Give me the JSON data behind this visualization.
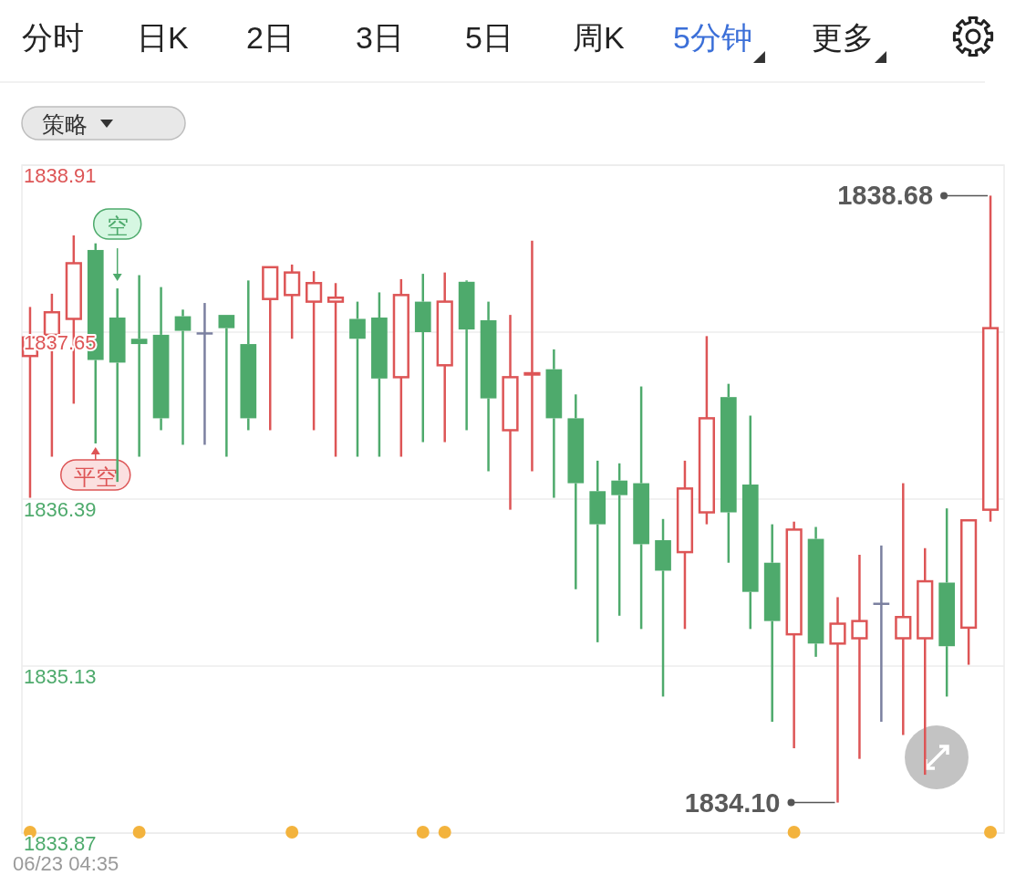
{
  "chart_data": {
    "type": "candlestick",
    "categories": [
      null,
      null,
      null,
      null,
      null,
      null,
      null,
      null,
      null,
      null,
      null,
      null,
      null,
      null,
      null,
      null,
      null,
      null,
      null,
      null,
      null,
      null,
      null,
      null,
      null,
      null,
      null,
      null,
      null,
      null,
      null,
      null,
      null,
      null,
      null,
      null,
      null,
      null,
      null,
      null,
      null,
      null,
      null,
      null,
      null
    ],
    "ohlc": [
      [
        1837.47,
        1837.84,
        1836.4,
        1837.61
      ],
      [
        1837.63,
        1837.94,
        1836.71,
        1837.8
      ],
      [
        1837.75,
        1838.38,
        1837.11,
        1838.17
      ],
      [
        1838.27,
        1838.32,
        1836.81,
        1837.44
      ],
      [
        1837.76,
        1837.98,
        1836.52,
        1837.42
      ],
      [
        1837.6,
        1838.08,
        1836.71,
        1837.56
      ],
      [
        1837.63,
        1837.99,
        1836.91,
        1837.0
      ],
      [
        1837.77,
        1837.82,
        1836.8,
        1837.66
      ],
      [
        1837.64,
        1837.87,
        1836.8,
        1837.64
      ],
      [
        1837.78,
        1837.78,
        1836.71,
        1837.68
      ],
      [
        1837.56,
        1838.04,
        1836.91,
        1837.0
      ],
      [
        1837.9,
        1838.14,
        1836.91,
        1838.14
      ],
      [
        1837.93,
        1838.16,
        1837.6,
        1838.1
      ],
      [
        1837.88,
        1838.11,
        1836.91,
        1838.02
      ],
      [
        1837.88,
        1838.02,
        1836.71,
        1837.91
      ],
      [
        1837.75,
        1837.88,
        1836.71,
        1837.6
      ],
      [
        1837.76,
        1837.95,
        1836.71,
        1837.3
      ],
      [
        1837.31,
        1838.05,
        1836.71,
        1837.93
      ],
      [
        1837.88,
        1838.09,
        1836.82,
        1837.65
      ],
      [
        1837.4,
        1838.1,
        1836.82,
        1837.88
      ],
      [
        1838.03,
        1838.04,
        1836.91,
        1837.67
      ],
      [
        1837.74,
        1837.88,
        1836.6,
        1837.15
      ],
      [
        1836.91,
        1837.78,
        1836.31,
        1837.31
      ],
      [
        1837.33,
        1838.34,
        1836.6,
        1837.34
      ],
      [
        1837.37,
        1837.52,
        1836.4,
        1837.0
      ],
      [
        1837.0,
        1837.18,
        1835.71,
        1836.51
      ],
      [
        1836.45,
        1836.68,
        1835.31,
        1836.2
      ],
      [
        1836.53,
        1836.66,
        1835.51,
        1836.42
      ],
      [
        1836.51,
        1837.24,
        1835.41,
        1836.05
      ],
      [
        1836.08,
        1836.24,
        1834.9,
        1835.85
      ],
      [
        1835.99,
        1836.68,
        1835.41,
        1836.47
      ],
      [
        1836.29,
        1837.62,
        1836.2,
        1837.0
      ],
      [
        1837.16,
        1837.26,
        1835.91,
        1836.29
      ],
      [
        1836.5,
        1837.02,
        1835.41,
        1835.69
      ],
      [
        1835.91,
        1836.2,
        1834.71,
        1835.47
      ],
      [
        1835.37,
        1836.22,
        1834.51,
        1836.16
      ],
      [
        1836.09,
        1836.18,
        1835.2,
        1835.3
      ],
      [
        1835.3,
        1835.65,
        1834.1,
        1835.45
      ],
      [
        1835.34,
        1835.97,
        1834.43,
        1835.47
      ],
      [
        1835.6,
        1836.04,
        1834.71,
        1835.6
      ],
      [
        1835.34,
        1836.51,
        1834.61,
        1835.5
      ],
      [
        1835.34,
        1836.02,
        1834.31,
        1835.77
      ],
      [
        1835.76,
        1836.32,
        1834.9,
        1835.28
      ],
      [
        1835.42,
        1836.23,
        1835.14,
        1836.23
      ],
      [
        1836.31,
        1838.68,
        1836.22,
        1837.68
      ]
    ],
    "colors": [
      "#dd5556",
      "#dd5556",
      "#dd5556",
      "#4eaa6c",
      "#4eaa6c",
      "#4eaa6c",
      "#4eaa6c",
      "#4eaa6c",
      "#7b80a0",
      "#4eaa6c",
      "#4eaa6c",
      "#dd5556",
      "#dd5556",
      "#dd5556",
      "#dd5556",
      "#4eaa6c",
      "#4eaa6c",
      "#dd5556",
      "#4eaa6c",
      "#dd5556",
      "#4eaa6c",
      "#4eaa6c",
      "#dd5556",
      "#dd5556",
      "#4eaa6c",
      "#4eaa6c",
      "#4eaa6c",
      "#4eaa6c",
      "#4eaa6c",
      "#4eaa6c",
      "#dd5556",
      "#dd5556",
      "#4eaa6c",
      "#4eaa6c",
      "#4eaa6c",
      "#dd5556",
      "#4eaa6c",
      "#dd5556",
      "#dd5556",
      "#7b80a0",
      "#dd5556",
      "#dd5556",
      "#4eaa6c",
      "#dd5556",
      "#dd5556"
    ],
    "ylim": [
      1833.87,
      1838.91
    ],
    "yticks": [
      1833.87,
      1835.13,
      1836.39,
      1837.65,
      1838.91
    ],
    "grid": "y",
    "annotations": [
      "分时",
      "日K",
      "2日",
      "3日",
      "5日",
      "周K",
      "5分钟",
      "更多",
      "策略",
      {
        "text": "空",
        "y": 1837.98
      },
      {
        "text": "平空",
        "y": 1836.81
      },
      "1838.68",
      "1834.10",
      "06/23 04:35"
    ]
  }
}
